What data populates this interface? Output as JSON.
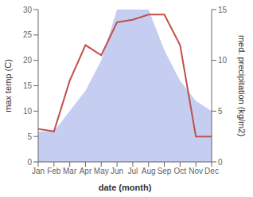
{
  "chart_data": {
    "type": "line",
    "x_label": "date (month)",
    "y_label": "max temp (C)",
    "y2_label": "med. precipitation (kg/m2)",
    "categories": [
      "Jan",
      "Feb",
      "Mar",
      "Apr",
      "May",
      "Jun",
      "Jul",
      "Aug",
      "Sep",
      "Oct",
      "Nov",
      "Dec"
    ],
    "series": [
      {
        "type": "area",
        "color": "#c5cef0",
        "axis": "y2",
        "values": [
          3.0,
          3.0,
          5.0,
          7.0,
          10.0,
          15.0,
          15.0,
          15.0,
          11.0,
          8.0,
          6.0,
          5.0
        ]
      },
      {
        "type": "line",
        "color": "#c0504d",
        "values": [
          6.5,
          6.0,
          16.0,
          23.0,
          21.0,
          27.5,
          28.0,
          29.0,
          29.0,
          23.0,
          5.0,
          5.0
        ]
      }
    ],
    "ylim": [
      0,
      30
    ],
    "yticks": [
      0,
      5,
      10,
      15,
      20,
      25,
      30
    ],
    "y2lim": [
      0,
      15
    ],
    "y2ticks": [
      0,
      5,
      10,
      15
    ],
    "grid": false
  }
}
